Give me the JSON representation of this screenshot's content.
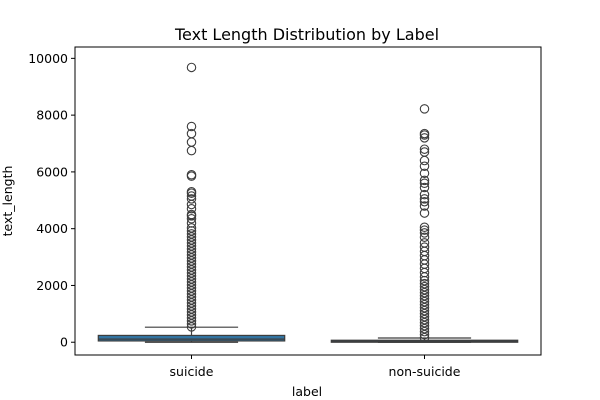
{
  "chart_data": {
    "type": "box",
    "title": "Text Length Distribution by Label",
    "xlabel": "label",
    "ylabel": "text_length",
    "categories": [
      "suicide",
      "non-suicide"
    ],
    "ylim": [
      -450,
      10400
    ],
    "yticks": [
      0,
      2000,
      4000,
      6000,
      8000,
      10000
    ],
    "grid": false,
    "box_color": "#3274a1",
    "line_color": "#3d3d3d",
    "series": [
      {
        "category": "suicide",
        "whisker_low": 0,
        "q1": 45,
        "median": 110,
        "q3": 240,
        "whisker_high": 530,
        "outliers_dense_range": [
          540,
          4100
        ],
        "outliers": [
          4200,
          4350,
          4450,
          4500,
          4700,
          4850,
          5050,
          5150,
          5250,
          5300,
          5850,
          5900,
          6750,
          7050,
          7350,
          7600,
          9680
        ]
      },
      {
        "category": "non-suicide",
        "whisker_low": 0,
        "q1": 15,
        "median": 35,
        "q3": 70,
        "whisker_high": 150,
        "outliers_dense_range": [
          160,
          2200
        ],
        "outliers": [
          2300,
          2450,
          2600,
          2750,
          2900,
          3050,
          3200,
          3350,
          3500,
          3700,
          3850,
          3950,
          4050,
          4550,
          4800,
          4950,
          5050,
          5200,
          5450,
          5600,
          5700,
          5950,
          6200,
          6400,
          6700,
          6800,
          7200,
          7300,
          7350,
          8220
        ]
      }
    ]
  }
}
